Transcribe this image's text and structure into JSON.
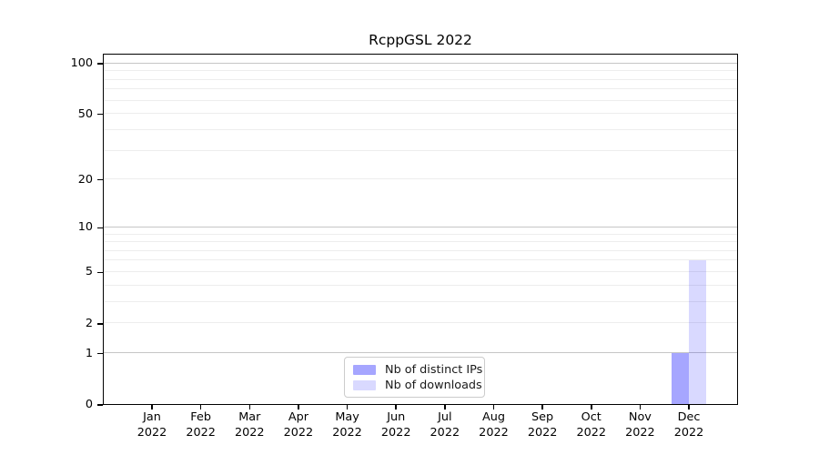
{
  "chart_data": {
    "type": "bar",
    "title": "RcppGSL 2022",
    "x_axis": {
      "months": [
        "Jan",
        "Feb",
        "Mar",
        "Apr",
        "May",
        "Jun",
        "Jul",
        "Aug",
        "Sep",
        "Oct",
        "Nov",
        "Dec"
      ],
      "year": "2022"
    },
    "y_axis": {
      "scale": "log10(value+1)",
      "tick_values": [
        0,
        1,
        2,
        5,
        10,
        20,
        50,
        100
      ],
      "grid_minor_values": [
        2,
        3,
        4,
        5,
        6,
        7,
        8,
        9,
        20,
        30,
        40,
        50,
        60,
        70,
        80,
        90
      ],
      "grid_major_values": [
        1,
        10,
        100
      ],
      "range": [
        0,
        117
      ]
    },
    "series": [
      {
        "name": "Nb of distinct IPs",
        "fill": "rgba(0,0,255,0.35)",
        "values": [
          0,
          0,
          0,
          0,
          0,
          0,
          0,
          0,
          0,
          0,
          0,
          1
        ]
      },
      {
        "name": "Nb of downloads",
        "fill": "rgba(0,0,255,0.15)",
        "values": [
          0,
          0,
          0,
          0,
          0,
          0,
          0,
          0,
          0,
          0,
          0,
          6
        ]
      }
    ],
    "legend": {
      "position": "bottom-center"
    },
    "grid": "horizontal"
  }
}
